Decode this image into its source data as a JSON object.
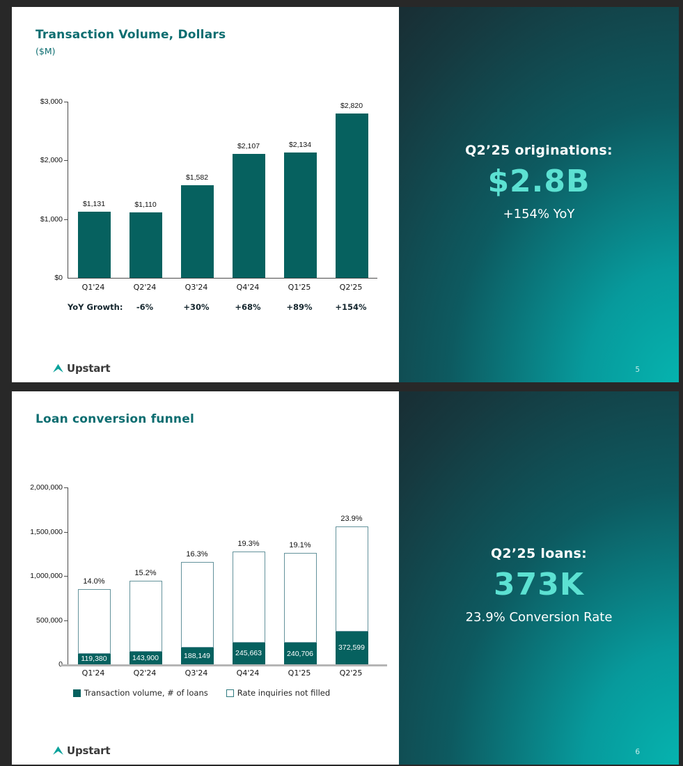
{
  "slides": [
    {
      "title": "Transaction Volume, Dollars",
      "subtitle": "($M)",
      "logo": "Upstart",
      "page_number": "5",
      "panel": {
        "heading": "Q2’25 originations:",
        "stat": "$2.8B",
        "subtext": "+154% YoY"
      }
    },
    {
      "title": "Loan conversion funnel",
      "logo": "Upstart",
      "page_number": "6",
      "panel": {
        "heading": "Q2’25 loans:",
        "stat": "373K",
        "subtext": "23.9% Conversion Rate"
      }
    }
  ],
  "chart_data": [
    {
      "type": "bar",
      "title": "Transaction Volume, Dollars ($M)",
      "categories": [
        "Q1'24",
        "Q2'24",
        "Q3'24",
        "Q4'24",
        "Q1'25",
        "Q2'25"
      ],
      "values": [
        1131,
        1110,
        1582,
        2107,
        2134,
        2820
      ],
      "data_labels": [
        "$1,131",
        "$1,110",
        "$1,582",
        "$2,107",
        "$2,134",
        "$2,820"
      ],
      "ylim": [
        0,
        3000
      ],
      "ytick_values": [
        3000,
        2000,
        1000,
        0
      ],
      "ytick_labels": [
        "$3,000",
        "$2,000",
        "$1,000",
        "$0"
      ],
      "grid": false,
      "legend_position": "none",
      "bar_color": "#06615f",
      "yoy_row": {
        "label": "YoY Growth:",
        "values": [
          "-6%",
          "+30%",
          "+68%",
          "+89%",
          "+154%"
        ]
      }
    },
    {
      "type": "stacked-bar",
      "title": "Loan conversion funnel",
      "categories": [
        "Q1'24",
        "Q2'24",
        "Q3'24",
        "Q4'24",
        "Q1'25",
        "Q2'25"
      ],
      "series": [
        {
          "name": "Transaction volume, # of loans",
          "style": "filled",
          "values": [
            119380,
            143900,
            188149,
            245663,
            240706,
            372599
          ],
          "labels": [
            "119,380",
            "143,900",
            "188,149",
            "245,663",
            "240,706",
            "372,599"
          ]
        },
        {
          "name": "Rate inquiries not filled",
          "style": "outlined",
          "values": [
            733330,
            802810,
            966140,
            1027200,
            1019530,
            1186810
          ]
        }
      ],
      "bar_totals": [
        852710,
        946710,
        1154290,
        1272860,
        1260240,
        1559410
      ],
      "conversion_rate_labels": [
        "14.0%",
        "15.2%",
        "16.3%",
        "19.3%",
        "19.1%",
        "23.9%"
      ],
      "ylim": [
        0,
        2000000
      ],
      "ytick_values": [
        2000000,
        1500000,
        1000000,
        500000,
        0
      ],
      "ytick_labels": [
        "2,000,000",
        "1,500,000",
        "1,000,000",
        "500,000",
        "0"
      ],
      "grid": false,
      "legend_position": "bottom",
      "bar_color": "#06615f",
      "outline_color": "#63929b"
    }
  ],
  "colors": {
    "title_teal": "#0c6d70",
    "bar_teal": "#06615f",
    "stat_mint": "#5ce1d2",
    "panel_dark": "#16393f",
    "panel_bright": "#05b5b0",
    "background": "#282828"
  }
}
